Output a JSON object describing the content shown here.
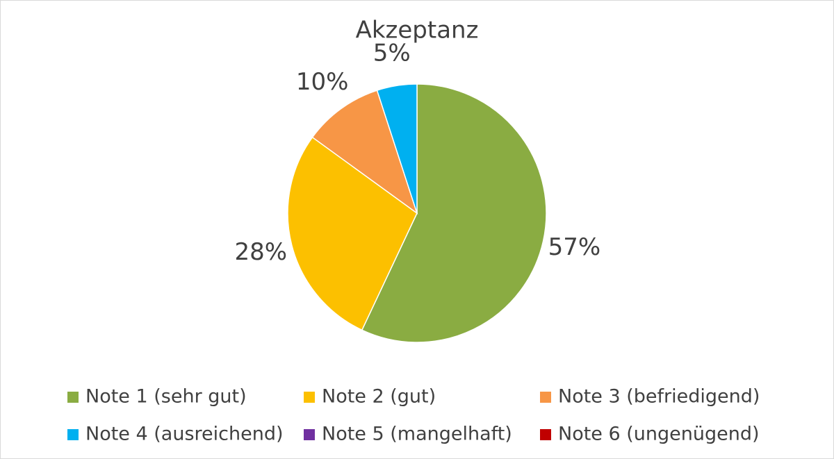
{
  "chart_data": {
    "type": "pie",
    "title": "Akzeptanz",
    "categories": [
      "Note 1 (sehr gut)",
      "Note 2 (gut)",
      "Note 3 (befriedigend)",
      "Note 4 (ausreichend)",
      "Note 5 (mangelhaft)",
      "Note 6 (ungenügend)"
    ],
    "values": [
      57,
      28,
      10,
      5,
      0,
      0
    ],
    "value_labels": [
      "57%",
      "28%",
      "10%",
      "5%",
      null,
      null
    ],
    "colors": [
      "#8aac42",
      "#fcc000",
      "#f79646",
      "#00b0f0",
      "#7030a0",
      "#c00000"
    ],
    "legend": "bottom"
  }
}
